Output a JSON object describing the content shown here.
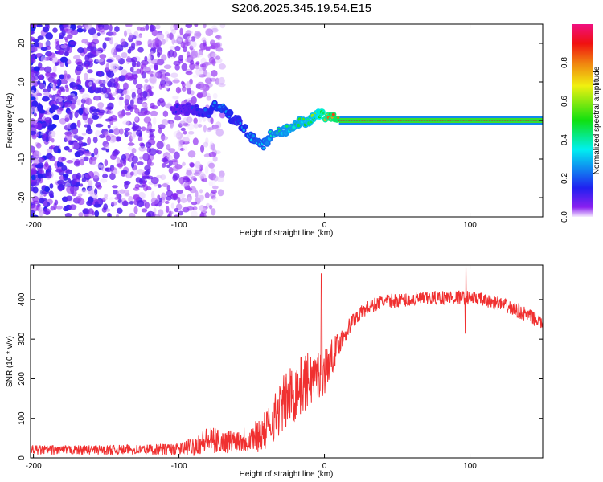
{
  "chart_data": [
    {
      "type": "heatmap",
      "title": "S206.2025.345.19.54.E15",
      "xlabel": "Height of straight line (km)",
      "ylabel": "Frequency (Hz)",
      "xlim": [
        -202,
        150
      ],
      "ylim": [
        -25,
        25
      ],
      "xticks": [
        -200,
        -100,
        0,
        100
      ],
      "yticks": [
        -20,
        -10,
        0,
        10,
        20
      ],
      "colorbar": {
        "label": "Normalized spectral amplitude",
        "range": [
          0,
          1
        ],
        "ticks": [
          "0.0",
          "0.2",
          "0.4",
          "0.6",
          "0.8"
        ]
      },
      "ridge": {
        "x": [
          -100,
          -90,
          -80,
          -75,
          -70,
          -65,
          -60,
          -55,
          -50,
          -45,
          -42,
          -38,
          -30,
          -20,
          -10,
          -5,
          0,
          5,
          10,
          20,
          40,
          60,
          80,
          95,
          110,
          130,
          150
        ],
        "freq": [
          3,
          3,
          2,
          4,
          3,
          1,
          0,
          -2,
          -4,
          -6,
          -7,
          -4,
          -3,
          -1,
          0,
          2,
          1,
          1,
          0,
          0,
          0,
          0,
          0,
          0,
          0,
          0,
          0
        ],
        "amplitude": [
          0.15,
          0.2,
          0.25,
          0.3,
          0.35,
          0.3,
          0.25,
          0.3,
          0.35,
          0.4,
          0.4,
          0.45,
          0.5,
          0.55,
          0.6,
          0.65,
          0.8,
          0.85,
          0.9,
          0.9,
          0.9,
          0.9,
          0.9,
          0.9,
          0.9,
          0.9,
          0.9
        ]
      },
      "noise_region": {
        "x": [
          -202,
          -90
        ],
        "amplitude_max": 0.12
      }
    },
    {
      "type": "line",
      "xlabel": "Height of straight line (km)",
      "ylabel": "SNR (10 * v/v)",
      "xlim": [
        -202,
        150
      ],
      "ylim": [
        0,
        487
      ],
      "xticks": [
        -200,
        -100,
        0,
        100
      ],
      "yticks": [
        0,
        100,
        200,
        300,
        400
      ],
      "color": "#f03030",
      "series": [
        {
          "name": "SNR",
          "x": [
            -202,
            -150,
            -100,
            -90,
            -80,
            -70,
            -60,
            -50,
            -40,
            -30,
            -20,
            -10,
            0,
            10,
            20,
            30,
            40,
            60,
            80,
            100,
            120,
            140,
            150
          ],
          "mean": [
            20,
            20,
            22,
            30,
            45,
            40,
            45,
            50,
            70,
            130,
            170,
            200,
            220,
            290,
            350,
            380,
            395,
            400,
            405,
            405,
            390,
            360,
            340
          ],
          "noise": [
            12,
            12,
            15,
            25,
            35,
            30,
            30,
            40,
            50,
            70,
            80,
            70,
            60,
            30,
            20,
            18,
            18,
            18,
            18,
            18,
            18,
            18,
            18
          ]
        }
      ]
    }
  ]
}
